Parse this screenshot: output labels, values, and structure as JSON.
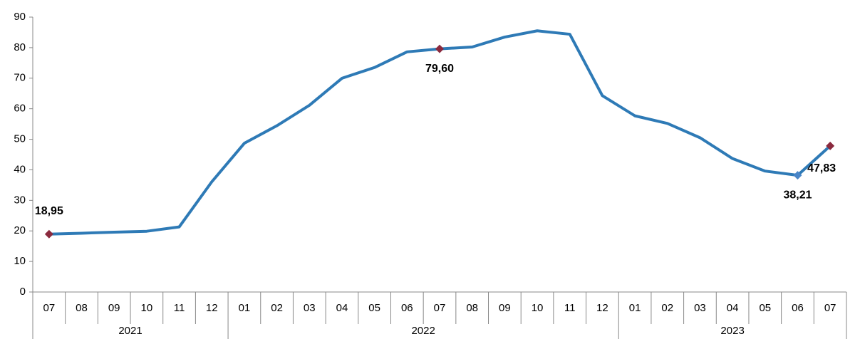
{
  "chart_data": {
    "type": "line",
    "groups": [
      {
        "name": "2021",
        "categories": [
          "07",
          "08",
          "09",
          "10",
          "11",
          "12"
        ]
      },
      {
        "name": "2022",
        "categories": [
          "01",
          "02",
          "03",
          "04",
          "05",
          "06",
          "07",
          "08",
          "09",
          "10",
          "11",
          "12"
        ]
      },
      {
        "name": "2023",
        "categories": [
          "01",
          "02",
          "03",
          "04",
          "05",
          "06",
          "07"
        ]
      }
    ],
    "series": [
      {
        "color": "#2e7ab6",
        "values": [
          18.95,
          19.25,
          19.58,
          19.89,
          21.31,
          36.08,
          48.69,
          54.44,
          61.14,
          69.97,
          73.5,
          78.62,
          79.6,
          80.21,
          83.45,
          85.51,
          84.39,
          64.27,
          57.68,
          55.18,
          50.51,
          43.68,
          39.59,
          38.21,
          47.83
        ],
        "value_labels": [
          "18,95",
          null,
          null,
          null,
          null,
          null,
          null,
          null,
          null,
          null,
          null,
          null,
          "79,60",
          null,
          null,
          null,
          null,
          null,
          null,
          null,
          null,
          null,
          null,
          "38,21",
          "47,83"
        ],
        "marker_colors": [
          "#8b2a3e",
          null,
          null,
          null,
          null,
          null,
          null,
          null,
          null,
          null,
          null,
          null,
          "#8b2a3e",
          null,
          null,
          null,
          null,
          null,
          null,
          null,
          null,
          null,
          null,
          "#4a86c8",
          "#8b2a3e"
        ]
      }
    ],
    "ylim": [
      0,
      90
    ],
    "yticks": [
      0,
      10,
      20,
      30,
      40,
      50,
      60,
      70,
      80,
      90
    ],
    "grid": false
  }
}
